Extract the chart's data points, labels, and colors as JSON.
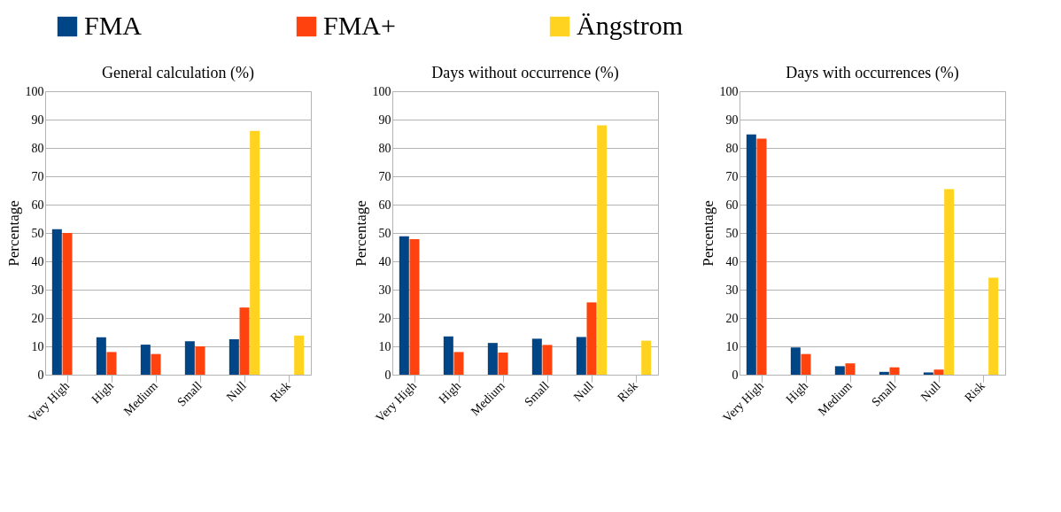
{
  "chart_data": [
    {
      "type": "bar",
      "title": "General calculation (%)",
      "ylabel": "Percentage",
      "categories": [
        "Very High",
        "High",
        "Medium",
        "Small",
        "Null",
        "Risk"
      ],
      "ylim": [
        0,
        100
      ],
      "yticks": [
        0,
        10,
        20,
        30,
        40,
        50,
        60,
        70,
        80,
        90,
        100
      ],
      "grid": "y",
      "legend": "top",
      "series": [
        {
          "name": "FMA",
          "color": "#004586",
          "values": [
            51.3,
            13.2,
            10.6,
            11.8,
            12.5,
            null
          ]
        },
        {
          "name": "FMA+",
          "color": "#ff420e",
          "values": [
            50,
            8,
            7.3,
            10,
            23.7,
            null
          ]
        },
        {
          "name": "Ängstrom",
          "color": "#ffd320",
          "values": [
            null,
            null,
            null,
            null,
            86,
            13.8
          ]
        }
      ]
    },
    {
      "type": "bar",
      "title": "Days without occurrence (%)",
      "ylabel": "Percentage",
      "categories": [
        "Very High",
        "High",
        "Medium",
        "Small",
        "Null",
        "Risk"
      ],
      "ylim": [
        0,
        100
      ],
      "yticks": [
        0,
        10,
        20,
        30,
        40,
        50,
        60,
        70,
        80,
        90,
        100
      ],
      "grid": "y",
      "legend": "top",
      "series": [
        {
          "name": "FMA",
          "color": "#004586",
          "values": [
            48.8,
            13.5,
            11.2,
            12.7,
            13.3,
            null
          ]
        },
        {
          "name": "FMA+",
          "color": "#ff420e",
          "values": [
            47.8,
            8,
            7.8,
            10.5,
            25.5,
            null
          ]
        },
        {
          "name": "Ängstrom",
          "color": "#ffd320",
          "values": [
            null,
            null,
            null,
            null,
            88,
            12
          ]
        }
      ]
    },
    {
      "type": "bar",
      "title": "Days with occurrences (%)",
      "ylabel": "Percentage",
      "categories": [
        "Very High",
        "High",
        "Medium",
        "Small",
        "Null",
        "Risk"
      ],
      "ylim": [
        0,
        100
      ],
      "yticks": [
        0,
        10,
        20,
        30,
        40,
        50,
        60,
        70,
        80,
        90,
        100
      ],
      "grid": "y",
      "legend": "top",
      "series": [
        {
          "name": "FMA",
          "color": "#004586",
          "values": [
            84.8,
            9.6,
            3,
            1,
            0.8,
            null
          ]
        },
        {
          "name": "FMA+",
          "color": "#ff420e",
          "values": [
            83.3,
            7.3,
            4,
            2.6,
            1.8,
            null
          ]
        },
        {
          "name": "Ängstrom",
          "color": "#ffd320",
          "values": [
            null,
            null,
            null,
            null,
            65.5,
            34.2
          ]
        }
      ]
    }
  ]
}
